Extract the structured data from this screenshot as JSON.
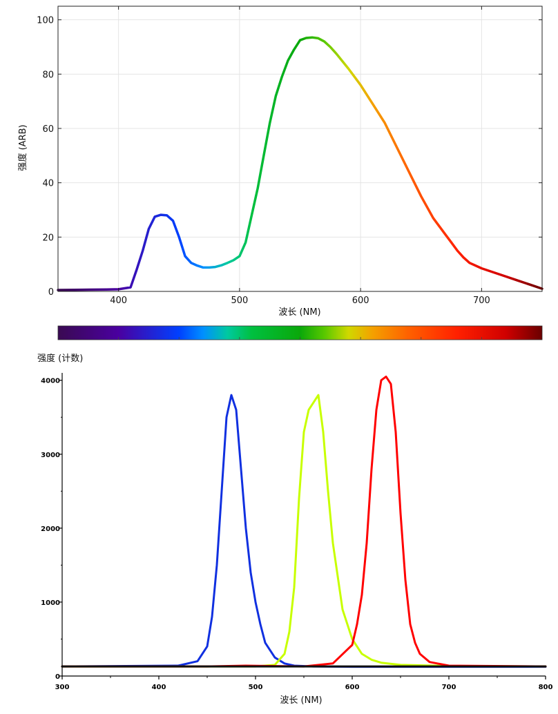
{
  "chart_data": [
    {
      "type": "line",
      "title": "",
      "xlabel": "波长 (NM)",
      "ylabel": "强度 (ARB)",
      "xlim": [
        350,
        750
      ],
      "ylim": [
        0,
        105
      ],
      "xticks": [
        400,
        500,
        600,
        700
      ],
      "yticks": [
        0,
        20,
        40,
        60,
        80,
        100
      ],
      "grid": true,
      "line_color": "spectral-gradient",
      "series": [
        {
          "x": [
            350,
            370,
            390,
            400,
            410,
            415,
            420,
            425,
            430,
            435,
            440,
            445,
            450,
            455,
            460,
            465,
            470,
            475,
            480,
            485,
            490,
            495,
            500,
            505,
            510,
            515,
            520,
            525,
            530,
            535,
            540,
            545,
            550,
            555,
            560,
            565,
            570,
            575,
            580,
            590,
            600,
            610,
            620,
            630,
            640,
            650,
            660,
            665,
            670,
            675,
            680,
            685,
            690,
            700,
            710,
            720,
            730,
            740,
            750
          ],
          "y": [
            0.5,
            0.6,
            0.7,
            0.8,
            1.5,
            8,
            15,
            23,
            27.5,
            28.2,
            28,
            26,
            20,
            13,
            10.5,
            9.5,
            8.8,
            8.8,
            9,
            9.6,
            10.5,
            11.5,
            13,
            18,
            28,
            38,
            50,
            62,
            72,
            79,
            85,
            89,
            92.5,
            93.3,
            93.5,
            93.2,
            92,
            90,
            87.5,
            82,
            76,
            69,
            62,
            53,
            44,
            35,
            27,
            24,
            21,
            18,
            15,
            12.5,
            10.5,
            8.5,
            7,
            5.5,
            4,
            2.5,
            1
          ]
        }
      ]
    },
    {
      "type": "bar",
      "title": "",
      "colorbar": {
        "range": [
          350,
          750
        ],
        "stops": [
          {
            "v": 350,
            "color": "#3a0a52"
          },
          {
            "v": 400,
            "color": "#4a00a0"
          },
          {
            "v": 450,
            "color": "#0040ff"
          },
          {
            "v": 470,
            "color": "#0090ff"
          },
          {
            "v": 490,
            "color": "#00c9a0"
          },
          {
            "v": 510,
            "color": "#00c040"
          },
          {
            "v": 550,
            "color": "#0aa80a"
          },
          {
            "v": 570,
            "color": "#58c800"
          },
          {
            "v": 590,
            "color": "#d0d800"
          },
          {
            "v": 610,
            "color": "#f4a000"
          },
          {
            "v": 640,
            "color": "#ff6000"
          },
          {
            "v": 680,
            "color": "#ff2000"
          },
          {
            "v": 720,
            "color": "#d00000"
          },
          {
            "v": 750,
            "color": "#6a0000"
          }
        ]
      }
    },
    {
      "type": "line",
      "title": "",
      "ylabel_top": "强度 (计数)",
      "xlabel": "波长 (NM)",
      "xlim": [
        300,
        800
      ],
      "ylim": [
        0,
        4100
      ],
      "xticks": [
        300,
        400,
        500,
        600,
        700,
        800
      ],
      "xtick_labels": [
        "300",
        "400",
        "500",
        "600",
        "700",
        "800"
      ],
      "yticks": [
        0,
        1000,
        2000,
        3000,
        4000
      ],
      "ytick_labels": [
        "0",
        "1000",
        "2000",
        "3000",
        "4000"
      ],
      "series": [
        {
          "color": "#1030e0",
          "x": [
            300,
            420,
            440,
            450,
            455,
            460,
            465,
            470,
            475,
            480,
            485,
            490,
            495,
            500,
            505,
            510,
            520,
            530,
            540,
            560,
            600,
            700,
            800
          ],
          "y": [
            130,
            140,
            200,
            400,
            800,
            1500,
            2500,
            3500,
            3800,
            3600,
            2800,
            2000,
            1400,
            1000,
            700,
            450,
            250,
            170,
            140,
            130,
            125,
            125,
            125
          ]
        },
        {
          "color": "#c8ff00",
          "x": [
            300,
            500,
            520,
            530,
            535,
            540,
            545,
            550,
            555,
            560,
            565,
            570,
            575,
            580,
            590,
            600,
            610,
            620,
            630,
            650,
            700,
            800
          ],
          "y": [
            130,
            130,
            150,
            300,
            600,
            1200,
            2400,
            3300,
            3600,
            3700,
            3800,
            3300,
            2500,
            1800,
            900,
            500,
            300,
            220,
            180,
            150,
            135,
            130
          ]
        },
        {
          "color": "#ff0000",
          "x": [
            300,
            450,
            490,
            550,
            580,
            600,
            605,
            610,
            615,
            620,
            625,
            630,
            635,
            640,
            645,
            650,
            655,
            660,
            665,
            670,
            680,
            700,
            800
          ],
          "y": [
            130,
            130,
            140,
            130,
            170,
            420,
            700,
            1100,
            1800,
            2800,
            3600,
            4000,
            4050,
            3950,
            3300,
            2200,
            1300,
            700,
            450,
            300,
            190,
            140,
            130
          ]
        },
        {
          "color": "#111111",
          "x": [
            300,
            400,
            500,
            600,
            700,
            800
          ],
          "y": [
            130,
            130,
            130,
            130,
            130,
            130
          ]
        }
      ]
    }
  ]
}
